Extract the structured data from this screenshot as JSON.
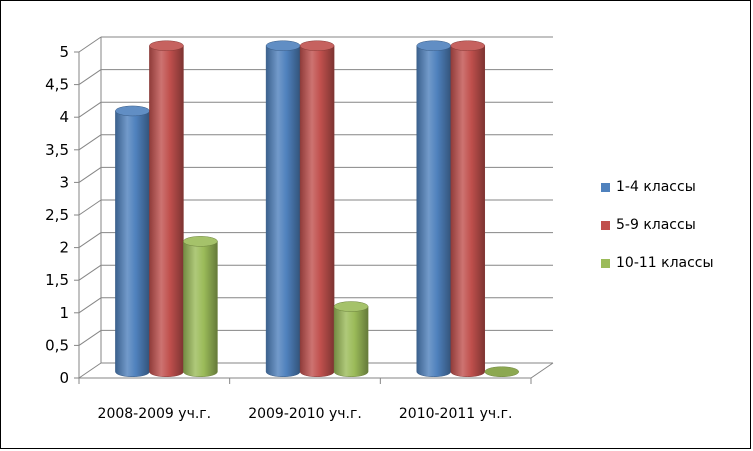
{
  "chart_data": {
    "type": "bar",
    "categories": [
      "2008-2009 уч.г.",
      "2009-2010 уч.г.",
      "2010-2011 уч.г."
    ],
    "series": [
      {
        "name": "1-4 классы",
        "values": [
          4,
          5,
          5
        ],
        "color": "#4F81BD"
      },
      {
        "name": "5-9 классы",
        "values": [
          5,
          5,
          5
        ],
        "color": "#C0504D"
      },
      {
        "name": "10-11 классы",
        "values": [
          2,
          1,
          0
        ],
        "color": "#9BBB59"
      }
    ],
    "ylim": [
      0,
      5
    ],
    "yticks": [
      "0",
      "0,5",
      "1",
      "1,5",
      "2",
      "2,5",
      "3",
      "3,5",
      "4",
      "4,5",
      "5"
    ],
    "grid": true,
    "legend_position": "right",
    "style": "3d-cylinder"
  }
}
